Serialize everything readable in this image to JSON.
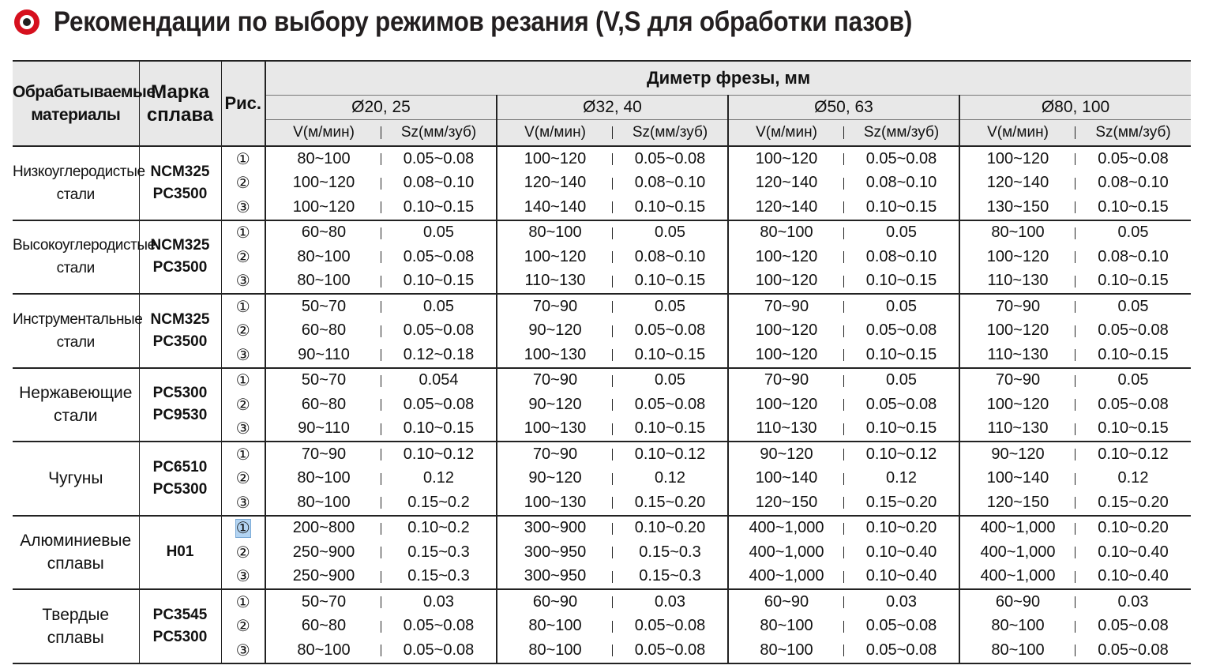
{
  "title": "Рекомендации по выбору режимов резания (V,S для обработки пазов)",
  "title_icon": "target-bullet-icon",
  "colors": {
    "icon_red": "#d6101e",
    "header_bg": "#e8e8e8",
    "selection": "#b3d4f2"
  },
  "header": {
    "materials": "Обрабатываемые материалы",
    "grade": "Марка сплава",
    "figure": "Рис.",
    "diameter": "Диметр фрезы, мм",
    "diameters": [
      "Ø20, 25",
      "Ø32, 40",
      "Ø50, 63",
      "Ø80, 100"
    ],
    "v_label": "V(м/мин)",
    "sz_label": "Sz(мм/зуб)"
  },
  "groups": [
    {
      "material": "Низкоуглеродистые стали",
      "grades": [
        "NCM325",
        "PC3500"
      ],
      "rows": [
        {
          "fig": "①",
          "cells": [
            "80~100",
            "0.05~0.08",
            "100~120",
            "0.05~0.08",
            "100~120",
            "0.05~0.08",
            "100~120",
            "0.05~0.08"
          ]
        },
        {
          "fig": "②",
          "cells": [
            "100~120",
            "0.08~0.10",
            "120~140",
            "0.08~0.10",
            "120~140",
            "0.08~0.10",
            "120~140",
            "0.08~0.10"
          ]
        },
        {
          "fig": "③",
          "cells": [
            "100~120",
            "0.10~0.15",
            "140~140",
            "0.10~0.15",
            "120~140",
            "0.10~0.15",
            "130~150",
            "0.10~0.15"
          ]
        }
      ]
    },
    {
      "material": "Высокоуглеродистые стали",
      "grades": [
        "NCM325",
        "PC3500"
      ],
      "rows": [
        {
          "fig": "①",
          "cells": [
            "60~80",
            "0.05",
            "80~100",
            "0.05",
            "80~100",
            "0.05",
            "80~100",
            "0.05"
          ]
        },
        {
          "fig": "②",
          "cells": [
            "80~100",
            "0.05~0.08",
            "100~120",
            "0.08~0.10",
            "100~120",
            "0.08~0.10",
            "100~120",
            "0.08~0.10"
          ]
        },
        {
          "fig": "③",
          "cells": [
            "80~100",
            "0.10~0.15",
            "110~130",
            "0.10~0.15",
            "100~120",
            "0.10~0.15",
            "110~130",
            "0.10~0.15"
          ]
        }
      ]
    },
    {
      "material": "Инструментальные стали",
      "grades": [
        "NCM325",
        "PC3500"
      ],
      "rows": [
        {
          "fig": "①",
          "cells": [
            "50~70",
            "0.05",
            "70~90",
            "0.05",
            "70~90",
            "0.05",
            "70~90",
            "0.05"
          ]
        },
        {
          "fig": "②",
          "cells": [
            "60~80",
            "0.05~0.08",
            "90~120",
            "0.05~0.08",
            "100~120",
            "0.05~0.08",
            "100~120",
            "0.05~0.08"
          ]
        },
        {
          "fig": "③",
          "cells": [
            "90~110",
            "0.12~0.18",
            "100~130",
            "0.10~0.15",
            "100~120",
            "0.10~0.15",
            "110~130",
            "0.10~0.15"
          ]
        }
      ]
    },
    {
      "material": "Нержавеющие стали",
      "grades": [
        "PC5300",
        "PC9530"
      ],
      "rows": [
        {
          "fig": "①",
          "cells": [
            "50~70",
            "0.054",
            "70~90",
            "0.05",
            "70~90",
            "0.05",
            "70~90",
            "0.05"
          ]
        },
        {
          "fig": "②",
          "cells": [
            "60~80",
            "0.05~0.08",
            "90~120",
            "0.05~0.08",
            "100~120",
            "0.05~0.08",
            "100~120",
            "0.05~0.08"
          ]
        },
        {
          "fig": "③",
          "cells": [
            "90~110",
            "0.10~0.15",
            "100~130",
            "0.10~0.15",
            "110~130",
            "0.10~0.15",
            "110~130",
            "0.10~0.15"
          ]
        }
      ]
    },
    {
      "material": "Чугуны",
      "grades": [
        "PC6510",
        "PC5300"
      ],
      "rows": [
        {
          "fig": "①",
          "cells": [
            "70~90",
            "0.10~0.12",
            "70~90",
            "0.10~0.12",
            "90~120",
            "0.10~0.12",
            "90~120",
            "0.10~0.12"
          ]
        },
        {
          "fig": "②",
          "cells": [
            "80~100",
            "0.12",
            "90~120",
            "0.12",
            "100~140",
            "0.12",
            "100~140",
            "0.12"
          ]
        },
        {
          "fig": "③",
          "cells": [
            "80~100",
            "0.15~0.2",
            "100~130",
            "0.15~0.20",
            "120~150",
            "0.15~0.20",
            "120~150",
            "0.15~0.20"
          ]
        }
      ]
    },
    {
      "material": "Алюминиевые сплавы",
      "grades": [
        "H01"
      ],
      "rows": [
        {
          "fig": "①",
          "cells": [
            "200~800",
            "0.10~0.2",
            "300~900",
            "0.10~0.20",
            "400~1,000",
            "0.10~0.20",
            "400~1,000",
            "0.10~0.20"
          ],
          "selected": true
        },
        {
          "fig": "②",
          "cells": [
            "250~900",
            "0.15~0.3",
            "300~950",
            "0.15~0.3",
            "400~1,000",
            "0.10~0.40",
            "400~1,000",
            "0.10~0.40"
          ]
        },
        {
          "fig": "③",
          "cells": [
            "250~900",
            "0.15~0.3",
            "300~950",
            "0.15~0.3",
            "400~1,000",
            "0.10~0.40",
            "400~1,000",
            "0.10~0.40"
          ]
        }
      ]
    },
    {
      "material": "Твердые сплавы",
      "grades": [
        "PC3545",
        "PC5300"
      ],
      "rows": [
        {
          "fig": "①",
          "cells": [
            "50~70",
            "0.03",
            "60~90",
            "0.03",
            "60~90",
            "0.03",
            "60~90",
            "0.03"
          ]
        },
        {
          "fig": "②",
          "cells": [
            "60~80",
            "0.05~0.08",
            "80~100",
            "0.05~0.08",
            "80~100",
            "0.05~0.08",
            "80~100",
            "0.05~0.08"
          ]
        },
        {
          "fig": "③",
          "cells": [
            "80~100",
            "0.05~0.08",
            "80~100",
            "0.05~0.08",
            "80~100",
            "0.05~0.08",
            "80~100",
            "0.05~0.08"
          ]
        }
      ]
    }
  ]
}
